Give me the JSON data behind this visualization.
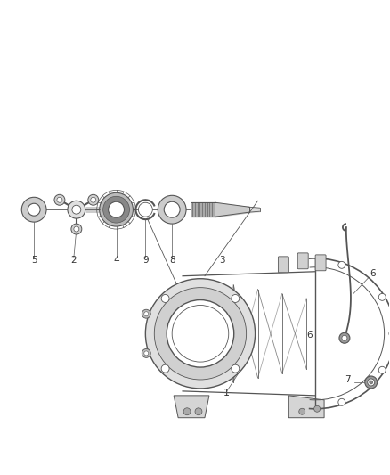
{
  "bg_color": "#ffffff",
  "line_color": "#555555",
  "label_color": "#333333",
  "fig_width": 4.38,
  "fig_height": 5.33,
  "dpi": 100,
  "label_fontsize": 7.5
}
